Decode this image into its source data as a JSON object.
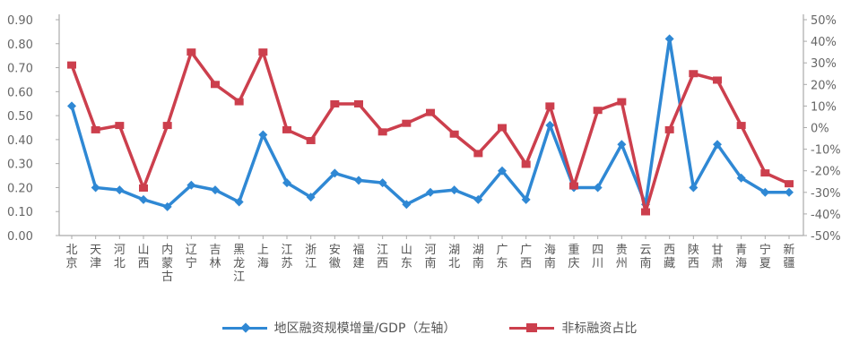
{
  "colors": {
    "blue": "#2f88d4",
    "red": "#cc3f4d",
    "axis": "#999999",
    "text": "#666666"
  },
  "chart_data": {
    "type": "line",
    "categories": [
      "北京",
      "天津",
      "河北",
      "山西",
      "内蒙古",
      "辽宁",
      "吉林",
      "黑龙江",
      "上海",
      "江苏",
      "浙江",
      "安徽",
      "福建",
      "江西",
      "山东",
      "河南",
      "湖北",
      "湖南",
      "广东",
      "广西",
      "海南",
      "重庆",
      "四川",
      "贵州",
      "云南",
      "西藏",
      "陕西",
      "甘肃",
      "青海",
      "宁夏",
      "新疆"
    ],
    "y_left": {
      "min": 0,
      "max": 0.9,
      "step": 0.1,
      "ticks": [
        "0.00",
        "0.10",
        "0.20",
        "0.30",
        "0.40",
        "0.50",
        "0.60",
        "0.70",
        "0.80",
        "0.90"
      ]
    },
    "y_right": {
      "min": -50,
      "max": 50,
      "step": 10,
      "ticks": [
        "-50%",
        "-40%",
        "-30%",
        "-20%",
        "-10%",
        "0%",
        "10%",
        "20%",
        "30%",
        "40%",
        "50%"
      ]
    },
    "series": [
      {
        "name": "地区融资规模增量/GDP（左轴）",
        "axis": "left",
        "color": "#2f88d4",
        "values": [
          0.54,
          0.2,
          0.19,
          0.15,
          0.12,
          0.21,
          0.19,
          0.14,
          0.42,
          0.22,
          0.16,
          0.26,
          0.23,
          0.22,
          0.13,
          0.18,
          0.19,
          0.15,
          0.27,
          0.15,
          0.46,
          0.2,
          0.2,
          0.38,
          0.13,
          0.82,
          0.2,
          0.38,
          0.24,
          0.18,
          0.18
        ]
      },
      {
        "name": "非标融资占比",
        "axis": "right",
        "color": "#cc3f4d",
        "values": [
          29,
          -1,
          1,
          -28,
          1,
          35,
          20,
          12,
          35,
          -1,
          -6,
          11,
          11,
          -2,
          2,
          7,
          -3,
          -12,
          0,
          -17,
          10,
          -27,
          8,
          12,
          -39,
          -1,
          25,
          22,
          1,
          -21,
          -26
        ]
      }
    ]
  }
}
